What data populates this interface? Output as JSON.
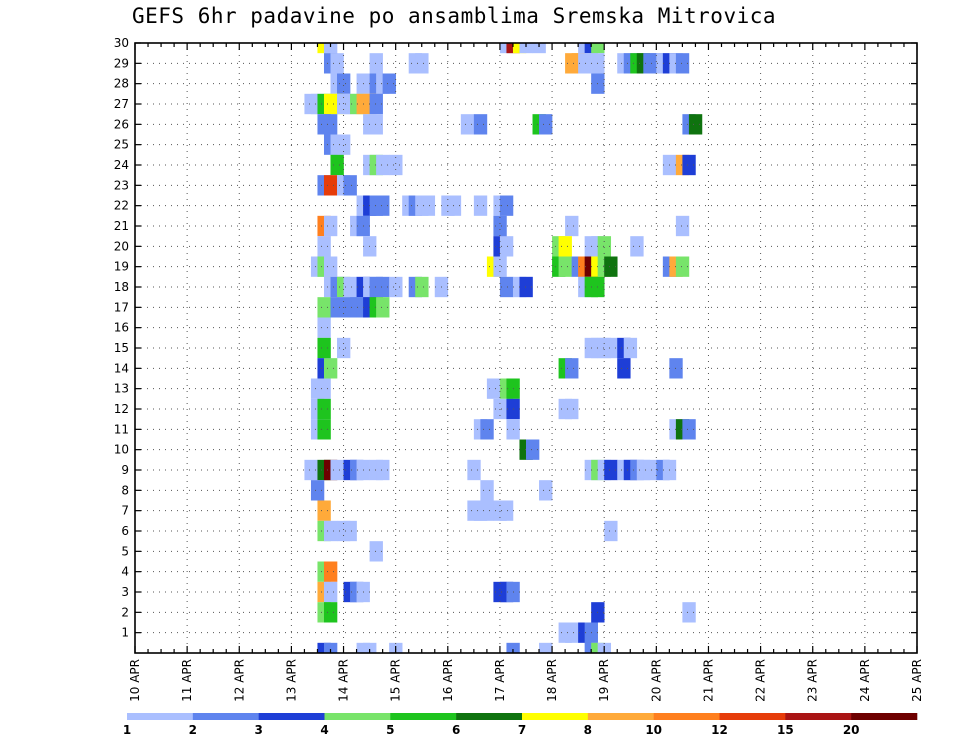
{
  "chart_data": {
    "type": "heatmap",
    "title": "GEFS 6hr padavine po ansamblima Sremska Mitrovica",
    "xlabel": "",
    "ylabel": "",
    "x_start": "10 APR 00Z",
    "x_step_hours": 6,
    "x_ticks": [
      "10 APR",
      "11 APR",
      "12 APR",
      "13 APR",
      "14 APR",
      "15 APR",
      "16 APR",
      "17 APR",
      "18 APR",
      "19 APR",
      "20 APR",
      "21 APR",
      "22 APR",
      "23 APR",
      "24 APR",
      "25 APR"
    ],
    "y_ticks": [
      1,
      2,
      3,
      4,
      5,
      6,
      7,
      8,
      9,
      10,
      11,
      12,
      13,
      14,
      15,
      16,
      17,
      18,
      19,
      20,
      21,
      22,
      23,
      24,
      25,
      26,
      27,
      28,
      29,
      30
    ],
    "members": [
      0,
      30
    ],
    "grid": true,
    "colorbar": {
      "position": "bottom",
      "labels": [
        "1",
        "2",
        "3",
        "4",
        "5",
        "6",
        "7",
        "8",
        "10",
        "12",
        "15",
        "20"
      ],
      "colors": [
        "#aabfff",
        "#5f84ee",
        "#1e3ed6",
        "#78e46a",
        "#1ec41e",
        "#0f730f",
        "#ffff00",
        "#ffaa3a",
        "#ff7f1e",
        "#e63c0a",
        "#aa1414",
        "#6e0000"
      ]
    },
    "cells": [
      [
        30,
        14,
        6
      ],
      [
        30,
        14.5,
        0
      ],
      [
        30,
        28,
        0
      ],
      [
        30,
        28.5,
        10
      ],
      [
        30,
        29,
        6
      ],
      [
        30,
        29.5,
        0
      ],
      [
        30,
        30.5,
        0
      ],
      [
        30,
        34,
        0
      ],
      [
        30,
        34.5,
        2
      ],
      [
        30,
        35,
        3
      ],
      [
        29,
        14.5,
        1
      ],
      [
        29,
        15,
        0
      ],
      [
        29,
        18,
        0
      ],
      [
        29,
        21,
        0
      ],
      [
        29,
        21.5,
        0
      ],
      [
        29,
        33,
        7
      ],
      [
        29,
        33.5,
        7
      ],
      [
        29,
        34,
        0
      ],
      [
        29,
        35,
        0
      ],
      [
        29,
        37,
        0
      ],
      [
        29,
        37.5,
        1
      ],
      [
        29,
        38,
        4
      ],
      [
        29,
        38.5,
        5
      ],
      [
        29,
        39,
        1
      ],
      [
        29,
        39.5,
        1
      ],
      [
        29,
        40,
        0
      ],
      [
        29,
        40.5,
        2
      ],
      [
        29,
        41,
        0
      ],
      [
        29,
        41.5,
        1
      ],
      [
        28,
        15,
        0
      ],
      [
        28,
        15.5,
        1
      ],
      [
        28,
        17,
        0
      ],
      [
        28,
        18,
        1
      ],
      [
        28,
        18.5,
        0
      ],
      [
        28,
        19,
        1
      ],
      [
        28,
        35,
        1
      ],
      [
        27,
        13,
        0
      ],
      [
        27,
        13.5,
        0
      ],
      [
        27,
        14,
        4
      ],
      [
        27,
        14.5,
        6
      ],
      [
        27,
        15,
        6
      ],
      [
        27,
        15.5,
        0
      ],
      [
        27,
        16,
        0
      ],
      [
        27,
        16.5,
        3
      ],
      [
        27,
        17,
        7
      ],
      [
        27,
        17.5,
        7
      ],
      [
        27,
        18,
        1
      ],
      [
        26,
        14,
        1
      ],
      [
        26,
        14.5,
        1
      ],
      [
        26,
        17.5,
        0
      ],
      [
        26,
        18,
        0
      ],
      [
        26,
        25,
        0
      ],
      [
        26,
        26,
        1
      ],
      [
        26,
        30.5,
        4
      ],
      [
        26,
        31,
        1
      ],
      [
        26,
        42,
        1
      ],
      [
        26,
        42.5,
        5
      ],
      [
        25,
        14.5,
        1
      ],
      [
        25,
        15,
        0
      ],
      [
        25,
        15.5,
        0
      ],
      [
        24,
        15,
        4
      ],
      [
        24,
        17.5,
        0
      ],
      [
        24,
        18,
        3
      ],
      [
        24,
        18.5,
        0
      ],
      [
        24,
        19.5,
        0
      ],
      [
        24,
        40.5,
        0
      ],
      [
        24,
        41.5,
        7
      ],
      [
        24,
        42,
        2
      ],
      [
        23,
        14,
        1
      ],
      [
        23,
        14.5,
        9
      ],
      [
        23,
        15.5,
        0
      ],
      [
        23,
        16,
        1
      ],
      [
        22,
        17,
        0
      ],
      [
        22,
        17.5,
        2
      ],
      [
        22,
        18,
        1
      ],
      [
        22,
        18.5,
        1
      ],
      [
        22,
        20.5,
        0
      ],
      [
        22,
        21,
        1
      ],
      [
        22,
        21.5,
        0
      ],
      [
        22,
        22,
        0
      ],
      [
        22,
        23.5,
        0
      ],
      [
        22,
        24,
        0
      ],
      [
        22,
        26,
        0
      ],
      [
        22,
        27.5,
        0
      ],
      [
        22,
        28,
        1
      ],
      [
        21,
        14,
        8
      ],
      [
        21,
        14.5,
        0
      ],
      [
        21,
        16.5,
        0
      ],
      [
        21,
        17,
        1
      ],
      [
        21,
        27.5,
        1
      ],
      [
        21,
        33,
        0
      ],
      [
        21,
        41.5,
        0
      ],
      [
        20,
        14,
        0
      ],
      [
        20,
        17.5,
        0
      ],
      [
        20,
        27.5,
        2
      ],
      [
        20,
        28,
        0
      ],
      [
        20,
        32,
        3
      ],
      [
        20,
        32.5,
        6
      ],
      [
        20,
        34.5,
        0
      ],
      [
        20,
        35,
        0
      ],
      [
        20,
        35.5,
        3
      ],
      [
        20,
        38,
        0
      ],
      [
        19,
        13.5,
        0
      ],
      [
        19,
        14,
        3
      ],
      [
        19,
        14.5,
        0
      ],
      [
        19,
        27,
        6
      ],
      [
        19,
        27.5,
        0
      ],
      [
        19,
        32,
        4
      ],
      [
        19,
        32.5,
        3
      ],
      [
        19,
        33.5,
        1
      ],
      [
        19,
        34,
        8
      ],
      [
        19,
        34.5,
        11
      ],
      [
        19,
        35,
        6
      ],
      [
        19,
        35.5,
        3
      ],
      [
        19,
        36,
        5
      ],
      [
        19,
        40.5,
        1
      ],
      [
        19,
        41,
        7
      ],
      [
        19,
        41.5,
        3
      ],
      [
        18,
        14.5,
        0
      ],
      [
        18,
        15,
        1
      ],
      [
        18,
        15.5,
        3
      ],
      [
        18,
        16,
        0
      ],
      [
        18,
        17,
        2
      ],
      [
        18,
        17.5,
        0
      ],
      [
        18,
        18,
        1
      ],
      [
        18,
        18.5,
        1
      ],
      [
        18,
        19.5,
        0
      ],
      [
        18,
        21,
        1
      ],
      [
        18,
        21.5,
        3
      ],
      [
        18,
        23,
        0
      ],
      [
        18,
        28,
        1
      ],
      [
        18,
        29,
        0
      ],
      [
        18,
        29.5,
        2
      ],
      [
        18,
        34,
        0
      ],
      [
        18,
        34.5,
        4
      ],
      [
        18,
        35,
        4
      ],
      [
        17,
        14,
        3
      ],
      [
        17,
        15,
        1
      ],
      [
        17,
        16,
        1
      ],
      [
        17,
        16.5,
        1
      ],
      [
        17,
        17,
        1
      ],
      [
        17,
        17.5,
        2
      ],
      [
        17,
        18,
        4
      ],
      [
        17,
        18.5,
        3
      ],
      [
        16,
        14,
        0
      ],
      [
        15,
        14,
        4
      ],
      [
        15,
        15.5,
        0
      ],
      [
        15,
        34.5,
        0
      ],
      [
        15,
        35,
        0
      ],
      [
        15,
        35.5,
        0
      ],
      [
        15,
        36,
        0
      ],
      [
        15,
        37,
        2
      ],
      [
        15,
        37.5,
        0
      ],
      [
        14,
        14,
        2
      ],
      [
        14,
        14.5,
        3
      ],
      [
        14,
        32.5,
        4
      ],
      [
        14,
        33,
        1
      ],
      [
        14,
        37,
        2
      ],
      [
        14,
        41,
        1
      ],
      [
        13,
        13.5,
        0
      ],
      [
        13,
        14,
        0
      ],
      [
        13,
        27,
        0
      ],
      [
        13,
        28,
        3
      ],
      [
        13,
        28.5,
        4
      ],
      [
        12,
        13.5,
        0
      ],
      [
        12,
        14,
        4
      ],
      [
        12,
        27.5,
        0
      ],
      [
        12,
        28.5,
        2
      ],
      [
        12,
        32.5,
        0
      ],
      [
        12,
        33,
        0
      ],
      [
        11,
        13.5,
        0
      ],
      [
        11,
        14,
        4
      ],
      [
        11,
        26,
        0
      ],
      [
        11,
        26.5,
        1
      ],
      [
        11,
        28.5,
        0
      ],
      [
        11,
        41,
        0
      ],
      [
        11,
        41.5,
        5
      ],
      [
        11,
        42,
        1
      ],
      [
        10,
        29.5,
        5
      ],
      [
        10,
        30,
        1
      ],
      [
        9,
        13,
        0
      ],
      [
        9,
        14,
        5
      ],
      [
        9,
        14.5,
        11
      ],
      [
        9,
        15,
        0
      ],
      [
        9,
        16,
        2
      ],
      [
        9,
        16.5,
        1
      ],
      [
        9,
        17,
        0
      ],
      [
        9,
        18,
        0
      ],
      [
        9,
        18.5,
        0
      ],
      [
        9,
        25.5,
        0
      ],
      [
        9,
        34.5,
        0
      ],
      [
        9,
        35,
        3
      ],
      [
        9,
        35.5,
        0
      ],
      [
        9,
        36,
        2
      ],
      [
        9,
        37,
        0
      ],
      [
        9,
        37.5,
        2
      ],
      [
        9,
        38,
        1
      ],
      [
        9,
        38.5,
        0
      ],
      [
        9,
        39,
        0
      ],
      [
        9,
        40,
        1
      ],
      [
        9,
        40.5,
        0
      ],
      [
        8,
        13.5,
        1
      ],
      [
        8,
        26.5,
        0
      ],
      [
        8,
        31,
        0
      ],
      [
        7,
        14,
        7
      ],
      [
        7,
        25.5,
        0
      ],
      [
        7,
        26,
        0
      ],
      [
        7,
        26.5,
        0
      ],
      [
        7,
        27.5,
        0
      ],
      [
        7,
        28,
        0
      ],
      [
        6,
        14,
        3
      ],
      [
        6,
        14.5,
        0
      ],
      [
        6,
        15.5,
        0
      ],
      [
        6,
        16,
        0
      ],
      [
        6,
        36,
        0
      ],
      [
        5,
        18,
        0
      ],
      [
        4,
        14,
        3
      ],
      [
        4,
        14.5,
        8
      ],
      [
        3,
        14,
        7
      ],
      [
        3,
        14.5,
        0
      ],
      [
        3,
        16,
        2
      ],
      [
        3,
        16.5,
        1
      ],
      [
        3,
        17,
        0
      ],
      [
        3,
        27.5,
        2
      ],
      [
        3,
        28,
        2
      ],
      [
        3,
        28.5,
        1
      ],
      [
        2,
        14,
        3
      ],
      [
        2,
        14.5,
        4
      ],
      [
        2,
        35,
        2
      ],
      [
        2,
        42,
        0
      ],
      [
        1,
        32.5,
        0
      ],
      [
        1,
        33,
        0
      ],
      [
        1,
        34,
        2
      ],
      [
        1,
        34.5,
        1
      ],
      [
        0,
        14,
        2
      ],
      [
        0,
        14.5,
        1
      ],
      [
        0,
        17,
        0
      ],
      [
        0,
        17.5,
        0
      ],
      [
        0,
        19.5,
        0
      ],
      [
        0,
        28.5,
        1
      ],
      [
        0,
        31,
        0
      ],
      [
        0,
        34.5,
        1
      ],
      [
        0,
        35,
        3
      ],
      [
        0,
        35.5,
        0
      ]
    ]
  }
}
